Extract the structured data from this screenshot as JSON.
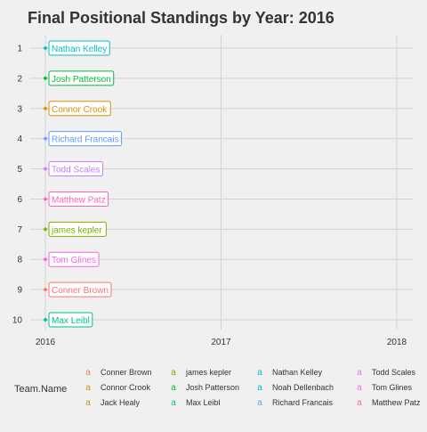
{
  "chart_data": {
    "type": "scatter",
    "title": "Final Positional Standings by Year: 2016",
    "xlabel": "",
    "ylabel": "",
    "x_ticks": [
      "2016",
      "2017",
      "2018"
    ],
    "xlim": [
      2016,
      2018
    ],
    "y_ticks": [
      "1",
      "2",
      "3",
      "4",
      "5",
      "6",
      "7",
      "8",
      "9",
      "10"
    ],
    "ylim": [
      1,
      10
    ],
    "y_reversed": true,
    "grid": true,
    "legend": {
      "title": "Team.Name",
      "position": "bottom",
      "glyph": "a",
      "columns": [
        [
          {
            "name": "Conner Brown",
            "color": "#f8766d"
          },
          {
            "name": "Connor Crook",
            "color": "#d39200"
          },
          {
            "name": "Jack Healy",
            "color": "#b79f00"
          }
        ],
        [
          {
            "name": "james kepler",
            "color": "#7cae00"
          },
          {
            "name": "Josh Patterson",
            "color": "#00ba38"
          },
          {
            "name": "Max Leibl",
            "color": "#00c08b"
          }
        ],
        [
          {
            "name": "Nathan Kelley",
            "color": "#00bfc4"
          },
          {
            "name": "Noah Dellenbach",
            "color": "#00b4f0"
          },
          {
            "name": "Richard Francais",
            "color": "#619cff"
          }
        ],
        [
          {
            "name": "Todd Scales",
            "color": "#c77cff"
          },
          {
            "name": "Tom Glines",
            "color": "#f564e3"
          },
          {
            "name": "Matthew Patz",
            "color": "#ff64b0"
          }
        ]
      ]
    },
    "points": [
      {
        "name": "Nathan Kelley",
        "x": 2016,
        "y": 1,
        "color": "#00bfc4"
      },
      {
        "name": "Josh Patterson",
        "x": 2016,
        "y": 2,
        "color": "#00ba38"
      },
      {
        "name": "Connor Crook",
        "x": 2016,
        "y": 3,
        "color": "#d39200"
      },
      {
        "name": "Richard Francais",
        "x": 2016,
        "y": 4,
        "color": "#619cff"
      },
      {
        "name": "Todd Scales",
        "x": 2016,
        "y": 5,
        "color": "#c77cff"
      },
      {
        "name": "Matthew Patz",
        "x": 2016,
        "y": 6,
        "color": "#ff64b0"
      },
      {
        "name": "james kepler",
        "x": 2016,
        "y": 7,
        "color": "#7cae00"
      },
      {
        "name": "Tom Glines",
        "x": 2016,
        "y": 8,
        "color": "#f564e3"
      },
      {
        "name": "Conner Brown",
        "x": 2016,
        "y": 9,
        "color": "#f8766d"
      },
      {
        "name": "Max Leibl",
        "x": 2016,
        "y": 10,
        "color": "#00c08b"
      }
    ]
  }
}
